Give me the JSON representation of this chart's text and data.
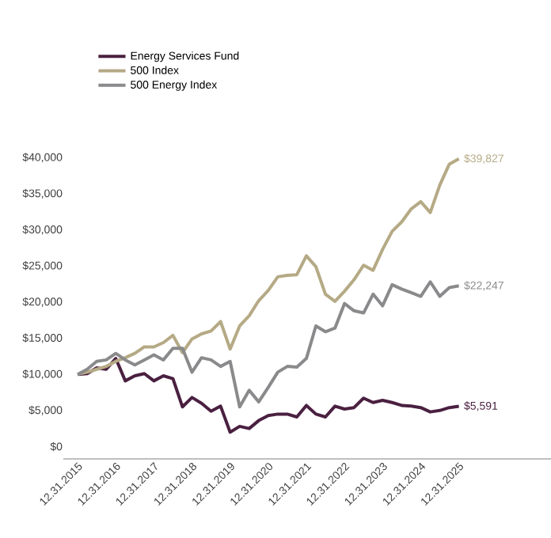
{
  "chart_data": {
    "type": "line",
    "categories": [
      "12.31.2015",
      null,
      null,
      null,
      "12.31.2016",
      null,
      null,
      null,
      "12.31.2017",
      null,
      null,
      null,
      "12.31.2018",
      null,
      null,
      null,
      "12.31.2019",
      null,
      null,
      null,
      "12.31.2020",
      null,
      null,
      null,
      "12.31.2021",
      null,
      null,
      null,
      "12.31.2022",
      null,
      null,
      null,
      "12.31.2023",
      null,
      null,
      null,
      "12.31.2024",
      null,
      null,
      null,
      "12.31.2025"
    ],
    "series": [
      {
        "name": "Energy Services Fund",
        "color": "#4a2040",
        "values": [
          10000,
          10100,
          10900,
          10700,
          12200,
          9100,
          9800,
          10100,
          9100,
          9800,
          9400,
          5500,
          6800,
          6000,
          4900,
          5600,
          2000,
          2800,
          2500,
          3600,
          4300,
          4500,
          4500,
          4100,
          5700,
          4500,
          4100,
          5600,
          5200,
          5400,
          6700,
          6100,
          6400,
          6100,
          5700,
          5600,
          5400,
          4800,
          5000,
          5400,
          5591
        ],
        "value_labels": [
          null,
          null,
          null,
          null,
          null,
          null,
          null,
          null,
          null,
          null,
          null,
          null,
          null,
          null,
          null,
          null,
          null,
          null,
          null,
          null,
          null,
          null,
          null,
          null,
          null,
          null,
          null,
          null,
          null,
          null,
          null,
          null,
          null,
          null,
          null,
          null,
          null,
          null,
          null,
          null,
          "$5,591"
        ]
      },
      {
        "name": "500 Index",
        "color": "#b5aa85",
        "values": [
          10000,
          10300,
          10700,
          11100,
          11800,
          12300,
          12900,
          13800,
          13800,
          14400,
          15400,
          13000,
          14900,
          15600,
          16000,
          17300,
          13500,
          16700,
          18100,
          20200,
          21600,
          23500,
          23700,
          23800,
          26400,
          24900,
          21100,
          20100,
          21500,
          23100,
          25100,
          24400,
          27300,
          29800,
          31100,
          32900,
          33900,
          32400,
          36200,
          39100,
          39827
        ],
        "value_labels": [
          null,
          null,
          null,
          null,
          null,
          null,
          null,
          null,
          null,
          null,
          null,
          null,
          null,
          null,
          null,
          null,
          null,
          null,
          null,
          null,
          null,
          null,
          null,
          null,
          null,
          null,
          null,
          null,
          null,
          null,
          null,
          null,
          null,
          null,
          null,
          null,
          null,
          null,
          null,
          null,
          "$39,827"
        ]
      },
      {
        "name": "500 Energy Index",
        "color": "#8a8a8c",
        "values": [
          10000,
          10700,
          11800,
          12000,
          12900,
          12000,
          11300,
          12000,
          12700,
          12000,
          13600,
          13600,
          10300,
          12300,
          12000,
          11100,
          11800,
          5500,
          7800,
          6200,
          8200,
          10300,
          11100,
          11000,
          12200,
          16700,
          15900,
          16400,
          19800,
          18800,
          18500,
          21100,
          19500,
          22400,
          21800,
          21300,
          20800,
          22800,
          20800,
          22000,
          22247
        ],
        "value_labels": [
          null,
          null,
          null,
          null,
          null,
          null,
          null,
          null,
          null,
          null,
          null,
          null,
          null,
          null,
          null,
          null,
          null,
          null,
          null,
          null,
          null,
          null,
          null,
          null,
          null,
          null,
          null,
          null,
          null,
          null,
          null,
          null,
          null,
          null,
          null,
          null,
          null,
          null,
          null,
          null,
          "$22,247"
        ]
      }
    ],
    "ylim": [
      -1700,
      40000
    ],
    "yticks": [
      {
        "value": 0,
        "label": "$0"
      },
      {
        "value": 5000,
        "label": "$5,000"
      },
      {
        "value": 10000,
        "label": "$10,000"
      },
      {
        "value": 15000,
        "label": "$15,000"
      },
      {
        "value": 20000,
        "label": "$20,000"
      },
      {
        "value": 25000,
        "label": "$25,000"
      },
      {
        "value": 30000,
        "label": "$30,000"
      },
      {
        "value": 35000,
        "label": "$35,000"
      },
      {
        "value": 40000,
        "label": "$40,000"
      }
    ],
    "grid": false,
    "legend": "top left",
    "marker": "none",
    "line_style": "solid"
  }
}
